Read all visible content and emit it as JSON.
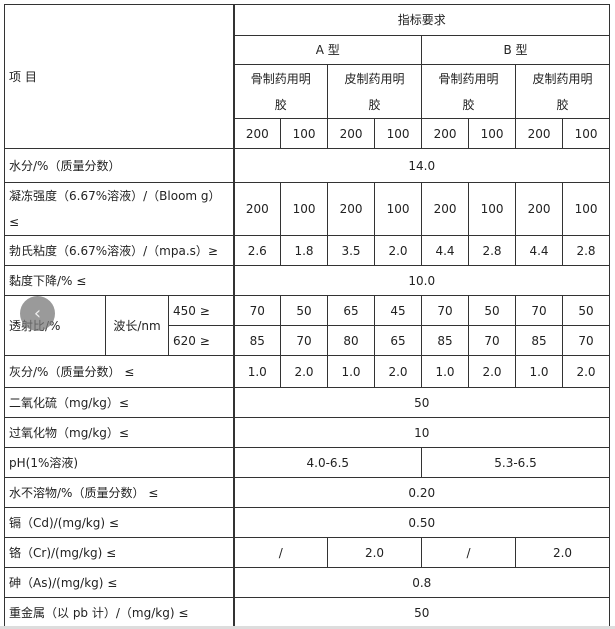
{
  "header": {
    "item_label": "项 目",
    "index_label": "指标要求",
    "type_a": "A 型",
    "type_b": "B 型",
    "subtypes": [
      "骨制药用明胶",
      "皮制药用明胶",
      "骨制药用明胶",
      "皮制药用明胶"
    ],
    "grades": [
      "200",
      "100",
      "200",
      "100",
      "200",
      "100",
      "200",
      "100"
    ]
  },
  "rows": [
    {
      "label": "水分/%（质量分数）",
      "cells": [
        {
          "text": "14.0",
          "span": 8
        }
      ]
    },
    {
      "label": "凝冻强度（6.67%溶液）/（Bloom g）≤",
      "cells": [
        {
          "text": "200"
        },
        {
          "text": "100"
        },
        {
          "text": "200"
        },
        {
          "text": "100"
        },
        {
          "text": "200"
        },
        {
          "text": "100"
        },
        {
          "text": "200"
        },
        {
          "text": "100"
        }
      ]
    },
    {
      "label": "勃氏粘度（6.67%溶液）/（mpa.s）≥",
      "cells": [
        {
          "text": "2.6"
        },
        {
          "text": "1.8"
        },
        {
          "text": "3.5"
        },
        {
          "text": "2.0"
        },
        {
          "text": "4.4"
        },
        {
          "text": "2.8"
        },
        {
          "text": "4.4"
        },
        {
          "text": "2.8"
        }
      ]
    },
    {
      "label": "黏度下降/% ≤",
      "cells": [
        {
          "text": "10.0",
          "span": 8
        }
      ]
    }
  ],
  "transmittance": {
    "label": "透射比/%",
    "wavelength_label": "波长/nm",
    "sub": [
      {
        "label": "450 ≥",
        "values": [
          "70",
          "50",
          "65",
          "45",
          "70",
          "50",
          "70",
          "50"
        ]
      },
      {
        "label": "620 ≥",
        "values": [
          "85",
          "70",
          "80",
          "65",
          "85",
          "70",
          "85",
          "70"
        ]
      }
    ]
  },
  "rows2": [
    {
      "label": "灰分/%（质量分数） ≤",
      "cells": [
        {
          "text": "1.0"
        },
        {
          "text": "2.0"
        },
        {
          "text": "1.0"
        },
        {
          "text": "2.0"
        },
        {
          "text": "1.0"
        },
        {
          "text": "2.0"
        },
        {
          "text": "1.0"
        },
        {
          "text": "2.0"
        }
      ]
    },
    {
      "label": "二氧化硫（mg/kg）≤",
      "cells": [
        {
          "text": "50",
          "span": 8
        }
      ]
    },
    {
      "label": "过氧化物（mg/kg）≤",
      "cells": [
        {
          "text": "10",
          "span": 8
        }
      ]
    },
    {
      "label": "pH(1%溶液)",
      "cells": [
        {
          "text": "4.0-6.5",
          "span": 4
        },
        {
          "text": "5.3-6.5",
          "span": 4
        }
      ]
    },
    {
      "label": "水不溶物/%（质量分数） ≤",
      "cells": [
        {
          "text": "0.20",
          "span": 8
        }
      ]
    },
    {
      "label": "镉（Cd)/(mg/kg) ≤",
      "cells": [
        {
          "text": "0.50",
          "span": 8
        }
      ]
    },
    {
      "label": "铬（Cr)/(mg/kg) ≤",
      "cells": [
        {
          "text": "/",
          "span": 2
        },
        {
          "text": "2.0",
          "span": 2
        },
        {
          "text": "/",
          "span": 2
        },
        {
          "text": "2.0",
          "span": 2
        }
      ]
    },
    {
      "label": "砷（As)/(mg/kg) ≤",
      "cells": [
        {
          "text": "0.8",
          "span": 8
        }
      ]
    },
    {
      "label": "重金属（以 pb 计）/（mg/kg) ≤",
      "cells": [
        {
          "text": "50",
          "span": 8
        }
      ]
    }
  ],
  "overlay": {
    "back_icon": "chevron-left-icon",
    "glyph": "‹"
  }
}
